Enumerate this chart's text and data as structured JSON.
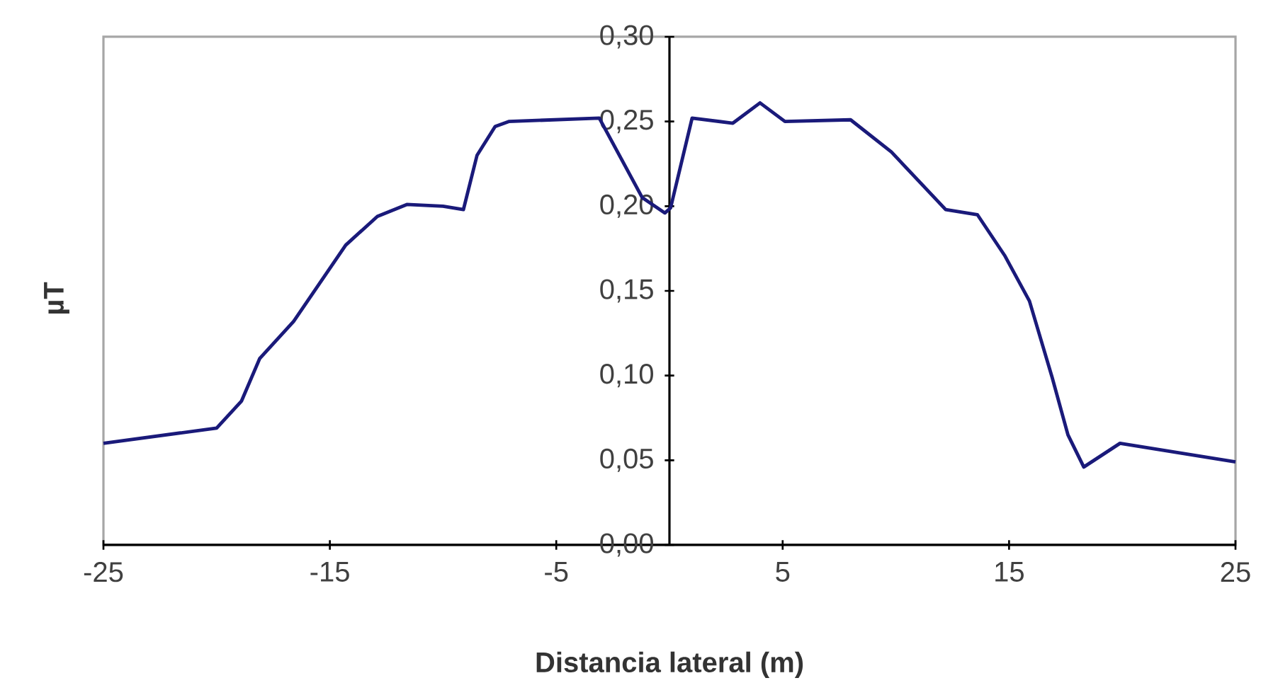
{
  "chart_data": {
    "type": "line",
    "xlabel": "Distancia lateral (m)",
    "ylabel": "µT",
    "color": "#1a1a7a",
    "x": [
      -25,
      -20,
      -18.9,
      -18.1,
      -16.6,
      -14.3,
      -12.9,
      -11.6,
      -10.0,
      -9.1,
      -8.5,
      -7.7,
      -7.1,
      -3.1,
      -1.2,
      -0.2,
      0.05,
      1.0,
      2.8,
      4.0,
      5.1,
      8.0,
      9.8,
      12.2,
      13.6,
      14.8,
      15.9,
      16.9,
      17.6,
      18.3,
      19.9,
      25
    ],
    "values": [
      0.06,
      0.069,
      0.085,
      0.11,
      0.132,
      0.177,
      0.194,
      0.201,
      0.2,
      0.198,
      0.23,
      0.247,
      0.25,
      0.252,
      0.205,
      0.196,
      0.199,
      0.252,
      0.249,
      0.261,
      0.25,
      0.251,
      0.232,
      0.198,
      0.195,
      0.171,
      0.144,
      0.099,
      0.065,
      0.046,
      0.06,
      0.049
    ],
    "xlim": [
      -25,
      25
    ],
    "xticks": [
      -25,
      -15,
      -5,
      5,
      15,
      25
    ],
    "ylim": [
      0,
      0.3
    ],
    "yticks": [
      {
        "value": 0,
        "label": "0,00"
      },
      {
        "value": 0.05,
        "label": "0,05"
      },
      {
        "value": 0.1,
        "label": "0,10"
      },
      {
        "value": 0.15,
        "label": "0,15"
      },
      {
        "value": 0.2,
        "label": "0,20"
      },
      {
        "value": 0.25,
        "label": "0,25"
      },
      {
        "value": 0.3,
        "label": "0,30"
      }
    ],
    "grid": false
  }
}
